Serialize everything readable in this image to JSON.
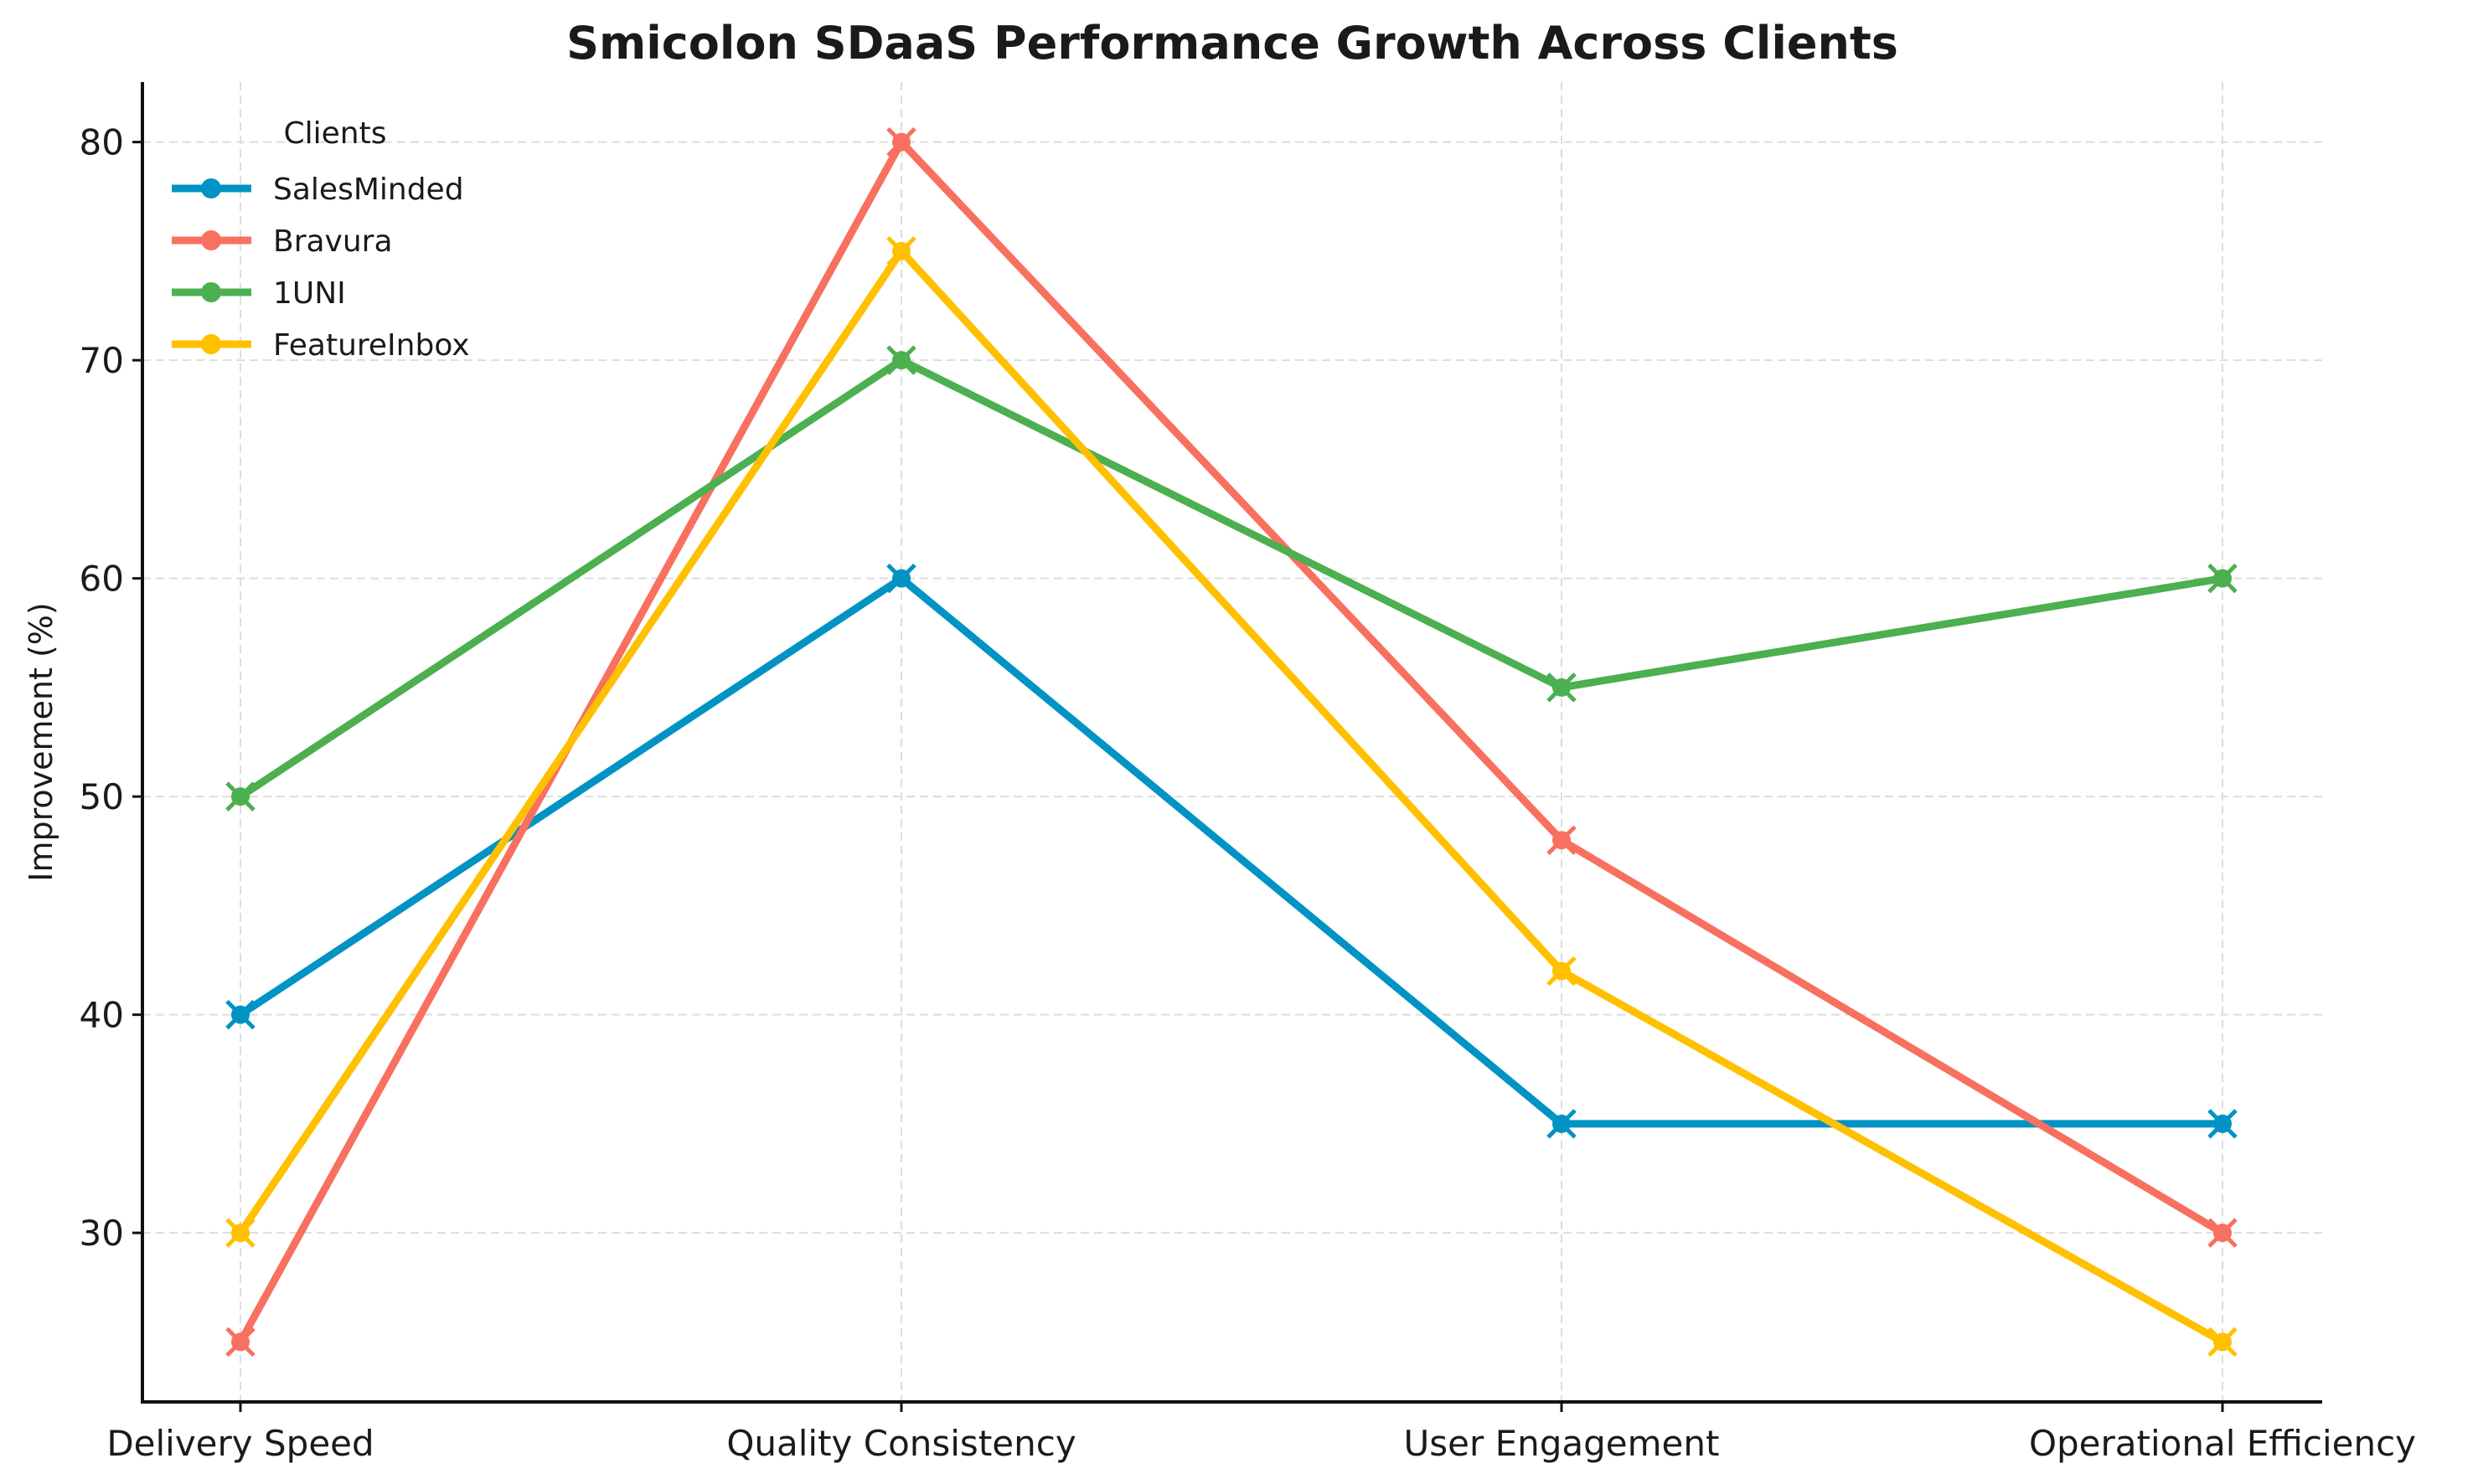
{
  "chart_data": {
    "type": "line",
    "title": "Smicolon SDaaS Performance Growth Across Clients",
    "xlabel": "",
    "ylabel": "Improvement (%)",
    "categories": [
      "Delivery Speed",
      "Quality Consistency",
      "User Engagement",
      "Operational Efficiency"
    ],
    "ylim": [
      22.25,
      82.75
    ],
    "yticks": [
      30,
      40,
      50,
      60,
      70,
      80
    ],
    "grid": true,
    "legend": {
      "title": "Clients",
      "placement": "top-left"
    },
    "series": [
      {
        "name": "SalesMinded",
        "values": [
          40,
          60,
          35,
          35
        ],
        "color": "#0093c4"
      },
      {
        "name": "Bravura",
        "values": [
          25,
          80,
          48,
          30
        ],
        "color": "#f87060"
      },
      {
        "name": "1UNI",
        "values": [
          50,
          70,
          55,
          60
        ],
        "color": "#4caf50"
      },
      {
        "name": "FeatureInbox",
        "values": [
          30,
          75,
          42,
          25
        ],
        "color": "#ffc000"
      }
    ]
  }
}
